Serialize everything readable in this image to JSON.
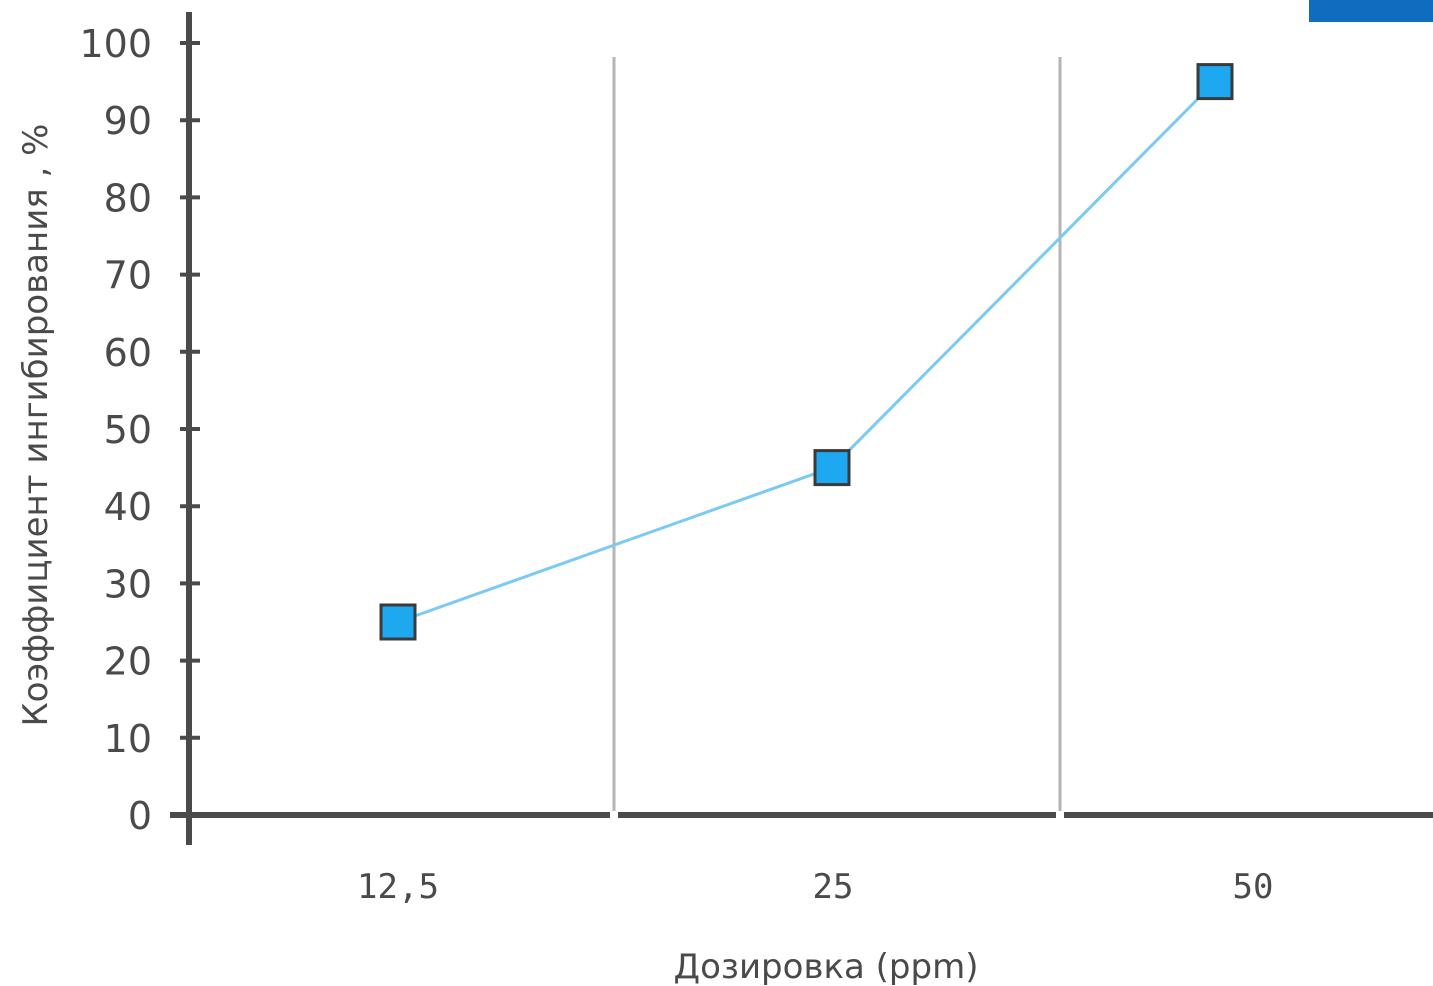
{
  "chart_data": {
    "type": "line",
    "categories": [
      "12,5",
      "25",
      "50"
    ],
    "series": [
      {
        "values": [
          25,
          45,
          95
        ],
        "color": "#1ea8f0"
      }
    ],
    "xlabel": "Дозировка (ppm)",
    "ylabel": "Коэффициент ингибирования , %",
    "ylim": [
      0,
      100
    ],
    "yticks": [
      0,
      10,
      20,
      30,
      40,
      50,
      60,
      70,
      80,
      90,
      100
    ],
    "grid": "vertical",
    "marker": "square"
  },
  "colors": {
    "axis": "#4a4a4a",
    "grid": "#b5b5b5",
    "line": "#7cc9f4",
    "marker_fill": "#1ea8f0",
    "marker_stroke": "#3a3a3a",
    "corner_block": "#0f6cbf"
  }
}
